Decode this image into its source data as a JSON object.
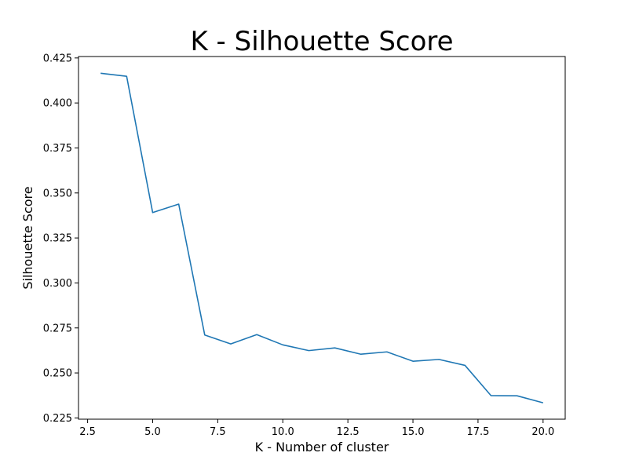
{
  "chart_data": {
    "type": "line",
    "title": "K - Silhouette Score",
    "xlabel": "K - Number of cluster",
    "ylabel": "Silhouette Score",
    "xlim": [
      2.15,
      20.85
    ],
    "ylim": [
      0.2243,
      0.4258
    ],
    "xticks": [
      2.5,
      5.0,
      7.5,
      10.0,
      12.5,
      15.0,
      17.5,
      20.0
    ],
    "xtick_labels": [
      "2.5",
      "5.0",
      "7.5",
      "10.0",
      "12.5",
      "15.0",
      "17.5",
      "20.0"
    ],
    "yticks": [
      0.225,
      0.25,
      0.275,
      0.3,
      0.325,
      0.35,
      0.375,
      0.4,
      0.425
    ],
    "ytick_labels": [
      "0.225",
      "0.250",
      "0.275",
      "0.300",
      "0.325",
      "0.350",
      "0.375",
      "0.400",
      "0.425"
    ],
    "grid": false,
    "series": [
      {
        "color": "#1f77b4",
        "x": [
          3,
          4,
          5,
          6,
          7,
          8,
          9,
          10,
          11,
          12,
          13,
          14,
          15,
          16,
          17,
          18,
          19,
          20
        ],
        "y": [
          0.4165,
          0.4148,
          0.3391,
          0.3438,
          0.2711,
          0.2661,
          0.2713,
          0.2656,
          0.2624,
          0.2639,
          0.2604,
          0.2617,
          0.2565,
          0.2575,
          0.2542,
          0.2374,
          0.2373,
          0.2334
        ]
      }
    ]
  }
}
